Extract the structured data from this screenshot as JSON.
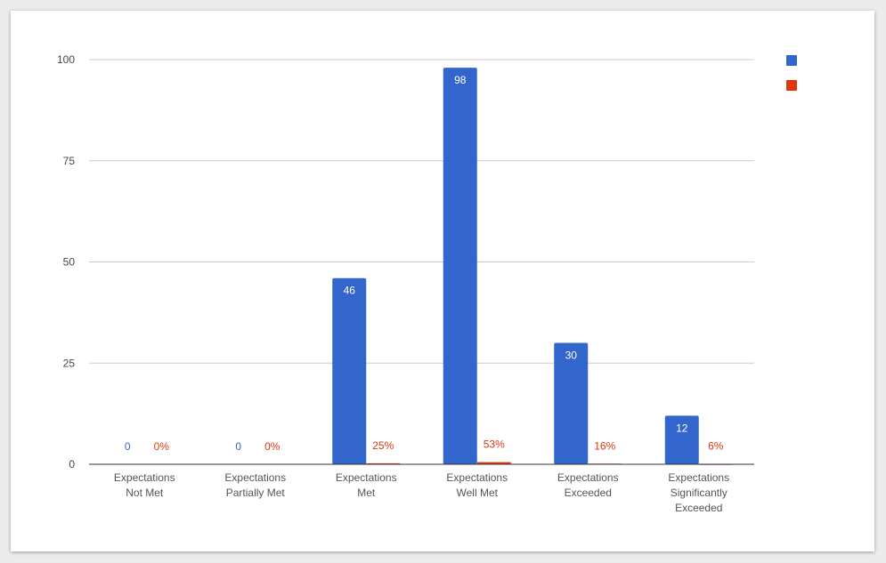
{
  "chart_data": {
    "type": "bar",
    "title": "",
    "xlabel": "",
    "ylabel": "",
    "ylim": [
      0,
      100
    ],
    "yticks": [
      0,
      25,
      50,
      75,
      100
    ],
    "grid": true,
    "legend": "right",
    "categories": [
      "Expectations Not Met",
      "Expectations Partially Met",
      "Expectations Met",
      "Expectations Well Met",
      "Expectations Exceeded",
      "Expectations Significantly Exceeded"
    ],
    "series": [
      {
        "color": "#3366cc",
        "values": [
          0,
          0,
          46,
          98,
          30,
          12
        ],
        "labels": [
          "0",
          "0",
          "46",
          "98",
          "30",
          "12"
        ]
      },
      {
        "color": "#dc3912",
        "values": [
          0,
          0,
          0.25,
          0.53,
          0.16,
          0.06
        ],
        "labels": [
          "0%",
          "0%",
          "25%",
          "53%",
          "16%",
          "6%"
        ]
      }
    ]
  }
}
